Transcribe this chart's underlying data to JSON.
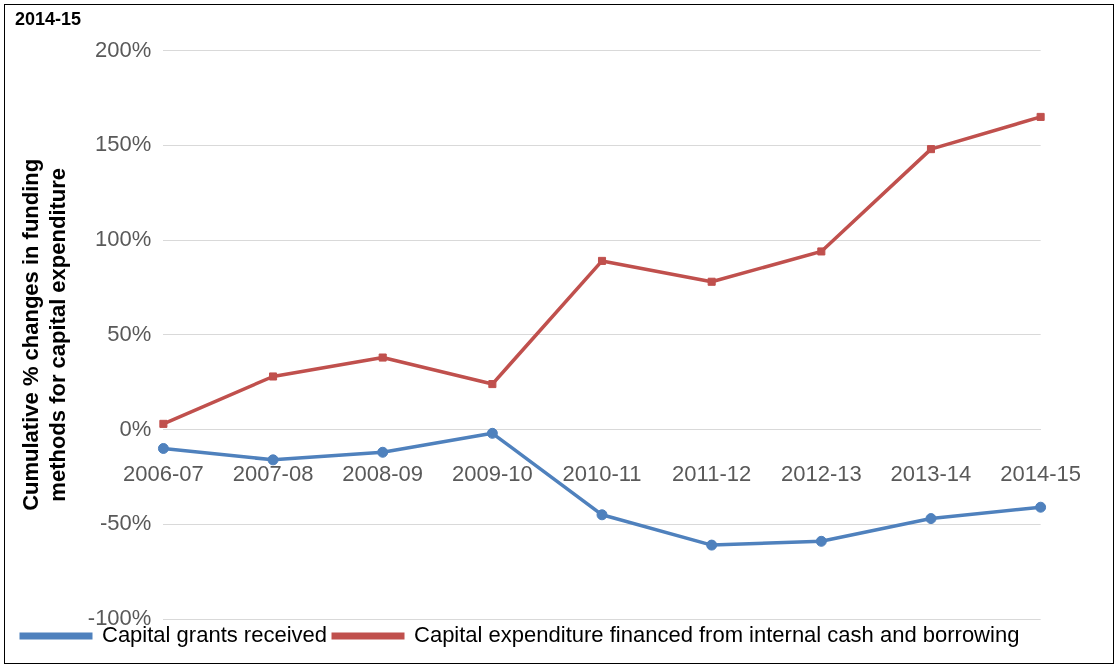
{
  "chart_data": {
    "type": "line",
    "title": "2014-15",
    "ylabel": "Cumulative % changes in funding methods for capital expenditure",
    "categories": [
      "2006-07",
      "2007-08",
      "2008-09",
      "2009-10",
      "2010-11",
      "2011-12",
      "2012-13",
      "2013-14",
      "2014-15"
    ],
    "series": [
      {
        "name": "Capital grants received",
        "color": "#4f81bd",
        "marker": "circle",
        "values": [
          -10,
          -16,
          -12,
          -2,
          -45,
          -61,
          -59,
          -47,
          -41
        ]
      },
      {
        "name": "Capital expenditure financed from internal cash and borrowing",
        "color": "#c0504d",
        "marker": "square",
        "values": [
          3,
          28,
          38,
          24,
          89,
          78,
          94,
          148,
          165
        ]
      }
    ],
    "ylim": [
      -100,
      200
    ],
    "yticks": [
      {
        "value": -100,
        "label": "-100%"
      },
      {
        "value": -50,
        "label": "-50%"
      },
      {
        "value": 0,
        "label": "0%"
      },
      {
        "value": 50,
        "label": "50%"
      },
      {
        "value": 100,
        "label": "100%"
      },
      {
        "value": 150,
        "label": "150%"
      },
      {
        "value": 200,
        "label": "200%"
      }
    ],
    "grid": "y",
    "legend": "bottom",
    "line_style": "solid"
  }
}
